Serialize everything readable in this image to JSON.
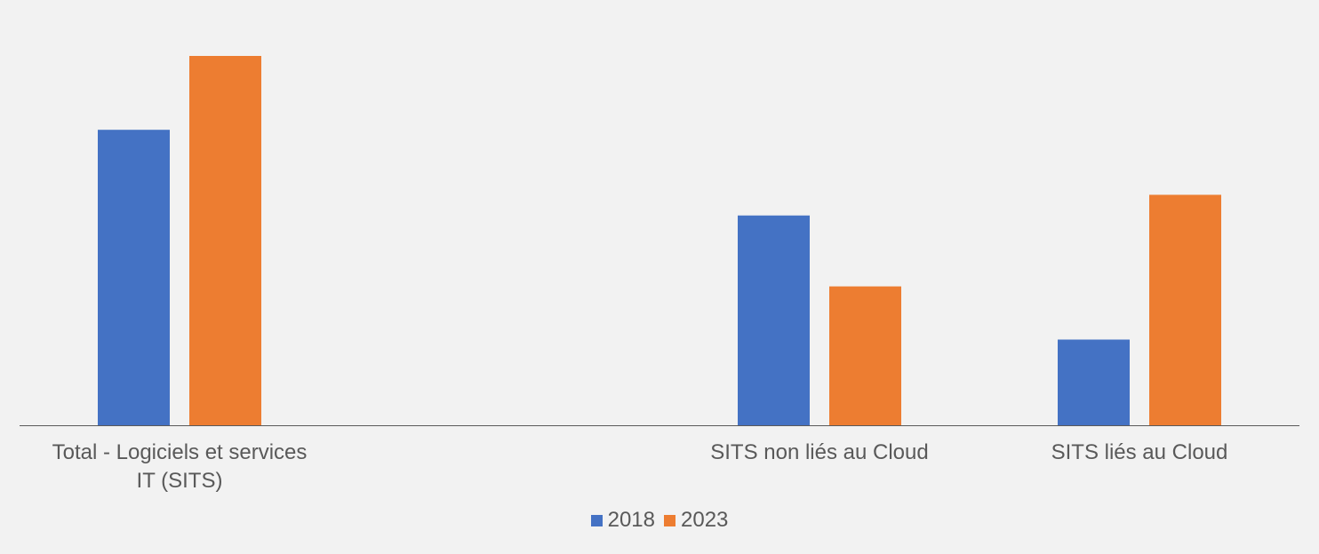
{
  "chart_data": {
    "type": "bar",
    "title": "",
    "xlabel": "",
    "ylabel": "",
    "categories": [
      [
        "Total - Logiciels et services",
        "IT (SITS)"
      ],
      [
        "SITS non liés au Cloud"
      ],
      [
        "SITS liés au Cloud"
      ]
    ],
    "category_slots": [
      0,
      2,
      3
    ],
    "slot_count": 4,
    "series": [
      {
        "name": "2018",
        "color": "#4472c4",
        "values": [
          100,
          71,
          29
        ]
      },
      {
        "name": "2023",
        "color": "#ed7d31",
        "values": [
          125,
          47,
          78
        ]
      }
    ],
    "ylim": [
      0,
      125
    ],
    "grid": false,
    "legend_position": "bottom"
  }
}
